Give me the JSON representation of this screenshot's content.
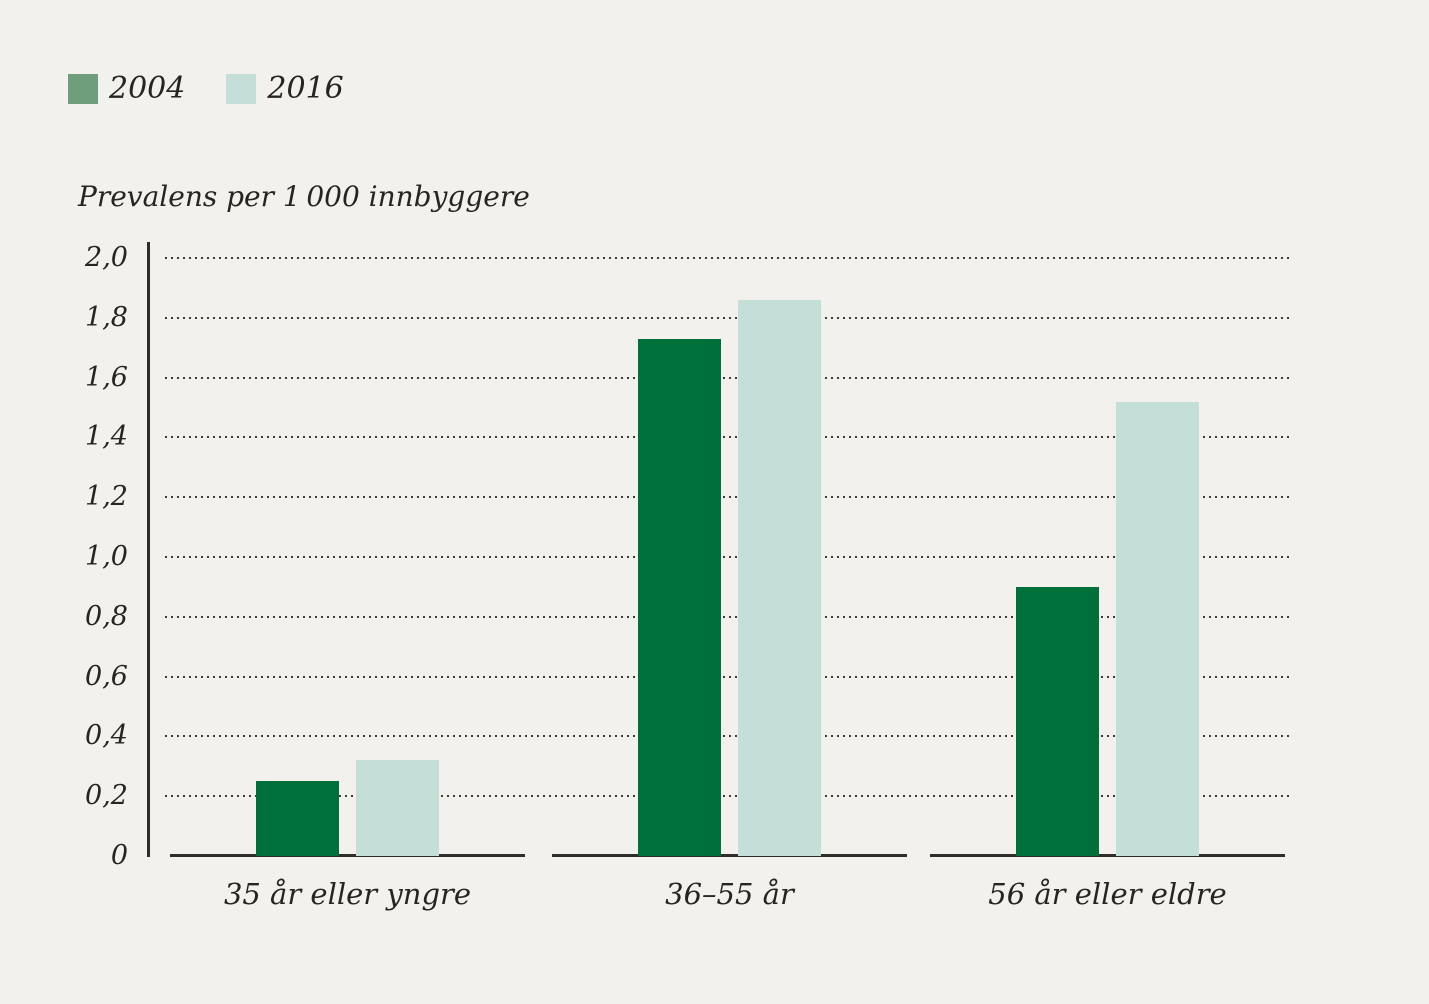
{
  "chart_data": {
    "type": "bar",
    "categories": [
      "35 år eller yngre",
      "36–55 år",
      "56 år eller eldre"
    ],
    "series": [
      {
        "name": "2004",
        "color": "#00703b",
        "legend_color": "#6f9e7c",
        "values": [
          0.25,
          1.73,
          0.9
        ]
      },
      {
        "name": "2016",
        "color": "#c4dfd8",
        "legend_color": "#c4dfd8",
        "values": [
          0.32,
          1.86,
          1.52
        ]
      }
    ],
    "ylabel": "Prevalens per 1 000 innbyggere",
    "ylim": [
      0,
      2.0
    ],
    "ytick_values": [
      0,
      0.2,
      0.4,
      0.6,
      0.8,
      1.0,
      1.2,
      1.4,
      1.6,
      1.8,
      2.0
    ],
    "ytick_labels": [
      "0",
      "0,2",
      "0,4",
      "0,6",
      "0,8",
      "1,0",
      "1,2",
      "1,4",
      "1,6",
      "1,8",
      "2,0"
    ],
    "grid": "horizontal-dotted",
    "legend_position": "top-left",
    "background_color": "#f2f1ee",
    "text_color": "#26251f"
  }
}
